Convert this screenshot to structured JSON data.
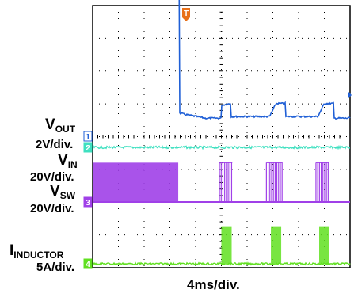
{
  "chart_data": {
    "type": "line",
    "title": "",
    "timebase": "4ms/div.",
    "trigger_marker": "T",
    "divisions": {
      "x": 10,
      "y": 8
    },
    "time_range_ms": [
      0,
      40
    ],
    "series": [
      {
        "name": "VOUT",
        "channel": "1",
        "scale": "2V/div.",
        "color": "#1f5fd6",
        "level_div": [
          [
            0,
            5.5
          ],
          [
            13.5,
            5.5
          ],
          [
            13.5,
            0.7
          ],
          [
            17.5,
            0.55
          ],
          [
            20,
            0.55
          ],
          [
            20,
            0.95
          ],
          [
            21.5,
            1.0
          ],
          [
            21.5,
            0.6
          ],
          [
            27.5,
            0.6
          ],
          [
            28.5,
            1.0
          ],
          [
            30,
            1.0
          ],
          [
            30,
            0.6
          ],
          [
            35,
            0.6
          ],
          [
            36,
            1.0
          ],
          [
            37.5,
            1.0
          ],
          [
            37.5,
            0.55
          ],
          [
            40,
            0.55
          ]
        ]
      },
      {
        "name": "VIN",
        "channel": "2",
        "scale": "20V/div.",
        "color": "#3fe0c0",
        "level_div": [
          [
            0,
            0.0
          ],
          [
            40,
            0.0
          ]
        ]
      },
      {
        "name": "VSW",
        "channel": "3",
        "scale": "20V/div.",
        "color": "#a040e8",
        "switching_bursts_ms": [
          [
            0,
            13.3
          ],
          [
            19.7,
            21.7
          ],
          [
            27.0,
            29.5
          ],
          [
            34.7,
            36.8
          ]
        ],
        "burst_level_div": 1.2
      },
      {
        "name": "INDUCTOR",
        "label_prefix": "I",
        "channel": "4",
        "scale": "5A/div.",
        "color": "#60e020",
        "pulses_ms": [
          [
            20,
            21.6
          ],
          [
            27.7,
            29.3
          ],
          [
            35.2,
            36.8
          ]
        ],
        "pulse_peak_div": 1.0
      }
    ]
  },
  "labels": {
    "vout_main": "V",
    "vout_sub": "OUT",
    "vout_scale": "2V/div.",
    "vin_main": "V",
    "vin_sub": "IN",
    "vin_scale": "20V/div.",
    "vsw_main": "V",
    "vsw_sub": "SW",
    "vsw_scale": "20V/div.",
    "il_main": "I",
    "il_sub": "INDUCTOR",
    "il_scale": "5A/div.",
    "ch1": "1",
    "ch2": "2",
    "ch3": "3",
    "ch4": "4"
  }
}
